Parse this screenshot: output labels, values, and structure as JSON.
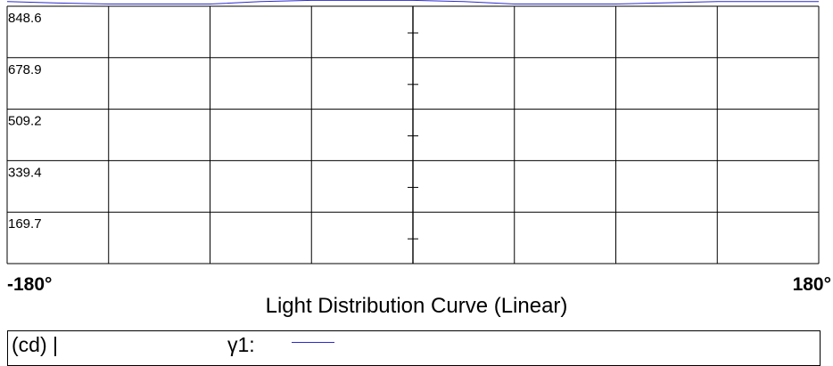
{
  "chart_data": {
    "type": "line",
    "title": "Light Distribution Curve (Linear)",
    "x_range": [
      -180,
      180
    ],
    "x_start_label": "-180°",
    "x_end_label": "180°",
    "y_ticks": [
      "848.6",
      "678.9",
      "509.2",
      "339.4",
      "169.7"
    ],
    "y_tick_values": [
      848.6,
      678.9,
      509.2,
      339.4,
      169.7
    ],
    "ylim": [
      0,
      848.6
    ],
    "grid": true,
    "x_grid_divisions": 8,
    "y_unit": "(cd) |",
    "legend_placement": "bottom",
    "series": [
      {
        "name": "γ1:",
        "color": "#2a2acc",
        "x": [
          -180,
          -157.5,
          -135,
          -112.5,
          -90,
          -67.5,
          -45,
          -22.5,
          0,
          22.5,
          45,
          67.5,
          90,
          112.5,
          135,
          157.5,
          180
        ],
        "y": [
          864.0,
          859.3,
          856.0,
          856.0,
          856.0,
          864.0,
          868.0,
          868.0,
          868.0,
          864.0,
          856.0,
          856.0,
          856.0,
          860.0,
          864.0,
          864.0,
          864.0
        ]
      }
    ]
  }
}
